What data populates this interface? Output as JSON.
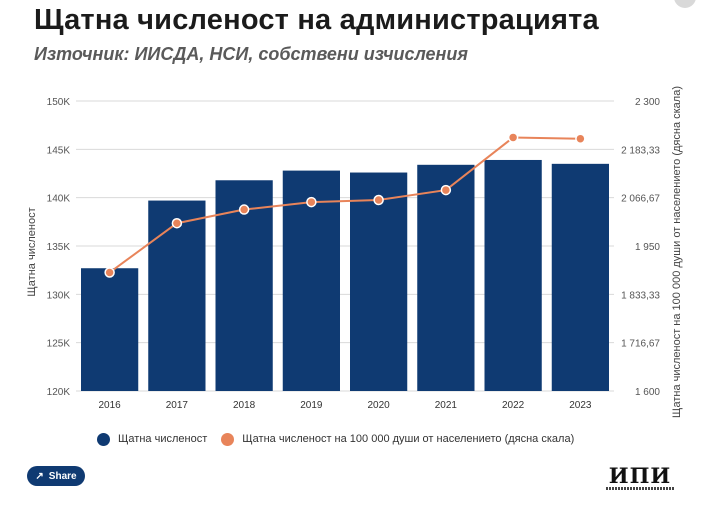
{
  "header": {
    "title": "Щатна численост на администрацията",
    "subtitle": "Източник: ИИСДА, НСИ, собствени изчисления"
  },
  "chart_data": {
    "type": "bar",
    "categories": [
      "2016",
      "2017",
      "2018",
      "2019",
      "2020",
      "2021",
      "2022",
      "2023"
    ],
    "series": [
      {
        "name": "Щатна численост",
        "type": "bar",
        "axis": "left",
        "color": "#0f3a72",
        "values": [
          132700,
          139700,
          141800,
          142800,
          142600,
          143400,
          143900,
          143500
        ]
      },
      {
        "name": "Щатна численост на 100 000 души от населението (дясна скала)",
        "type": "line",
        "axis": "right",
        "color": "#e8845a",
        "values": [
          1886,
          2005,
          2038,
          2056,
          2061,
          2085,
          2212,
          2209
        ]
      }
    ],
    "ylabel": "Щатна численост",
    "y2label": "Щатна численост на 100 000 души от населението (дясна скала)",
    "ylim": [
      120000,
      150000
    ],
    "y2lim": [
      1600,
      2300
    ],
    "y_ticks": [
      "150K",
      "145K",
      "140K",
      "135K",
      "130K",
      "125K",
      "120K"
    ],
    "y2_ticks": [
      "2 300",
      "2 183,33",
      "2 066,67",
      "1 950",
      "1 833,33",
      "1 716,67",
      "1 600"
    ],
    "grid": true,
    "legend_position": "bottom"
  },
  "share": {
    "label": "Share"
  },
  "logo": {
    "text": "ИПИ"
  }
}
